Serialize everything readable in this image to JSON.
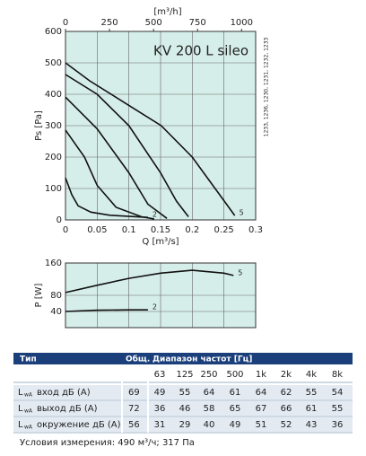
{
  "chart_data": [
    {
      "type": "line",
      "title": "KV 200 L sileo",
      "annotation": "1233, 1236, 1230, 1231, 1232, 1233",
      "xlabel": "Q [m³/s]",
      "ylabel": "Ps [Pa]",
      "x2label": "[m³/h]",
      "xlim": [
        0,
        0.3
      ],
      "xticks": [
        0,
        0.05,
        0.1,
        0.15,
        0.2,
        0.25,
        0.3
      ],
      "x2lim": [
        0,
        1080
      ],
      "x2ticks": [
        0,
        250,
        500,
        750,
        1000
      ],
      "ylim": [
        0,
        600
      ],
      "yticks": [
        0,
        100,
        200,
        300,
        400,
        500,
        600
      ],
      "grid": true,
      "background": "#d6eee9",
      "series": [
        {
          "name": "5",
          "color": "#111111",
          "x": [
            0,
            0.038,
            0.095,
            0.151,
            0.2,
            0.236,
            0.267
          ],
          "values": [
            500,
            443,
            371,
            300,
            200,
            100,
            14
          ]
        },
        {
          "color": "#111111",
          "x": [
            0,
            0.05,
            0.1,
            0.15,
            0.175,
            0.194
          ],
          "values": [
            463,
            400,
            300,
            150,
            60,
            10
          ]
        },
        {
          "color": "#111111",
          "x": [
            0,
            0.05,
            0.1,
            0.13,
            0.16
          ],
          "values": [
            391,
            290,
            150,
            50,
            5
          ]
        },
        {
          "color": "#111111",
          "x": [
            0,
            0.03,
            0.05,
            0.08,
            0.12,
            0.14
          ],
          "values": [
            286,
            200,
            110,
            40,
            10,
            3
          ]
        },
        {
          "name": "2",
          "color": "#111111",
          "x": [
            0,
            0.01,
            0.02,
            0.04,
            0.07,
            0.13
          ],
          "values": [
            134,
            80,
            45,
            25,
            15,
            8
          ]
        }
      ]
    },
    {
      "type": "line",
      "ylabel": "P [W]",
      "xlim": [
        0,
        0.3
      ],
      "xticks": [
        0,
        0.05,
        0.1,
        0.15,
        0.2,
        0.25,
        0.3
      ],
      "ylim": [
        0,
        160
      ],
      "yticks": [
        40,
        80,
        160
      ],
      "grid": true,
      "background": "#d6eee9",
      "series": [
        {
          "name": "5",
          "color": "#111111",
          "x": [
            0,
            0.05,
            0.1,
            0.15,
            0.2,
            0.25,
            0.265
          ],
          "values": [
            87,
            105,
            122,
            135,
            142,
            135,
            129
          ]
        },
        {
          "name": "2",
          "color": "#111111",
          "x": [
            0,
            0.05,
            0.1,
            0.13
          ],
          "values": [
            40,
            43,
            44,
            44
          ]
        }
      ]
    }
  ],
  "table": {
    "header": [
      "Тип",
      "Общ.",
      "Диапазон частот [Гц]"
    ],
    "bands": [
      "63",
      "125",
      "250",
      "500",
      "1k",
      "2k",
      "4k",
      "8k"
    ],
    "rows": [
      {
        "symbol": "L",
        "sub": "wA",
        "label": "вход дБ (A)",
        "total": "69",
        "values": [
          "49",
          "55",
          "64",
          "61",
          "64",
          "62",
          "55",
          "54"
        ]
      },
      {
        "symbol": "L",
        "sub": "wA",
        "label": "выход дБ (A)",
        "total": "72",
        "values": [
          "36",
          "46",
          "58",
          "65",
          "67",
          "66",
          "61",
          "55"
        ]
      },
      {
        "symbol": "L",
        "sub": "wA",
        "label": "окружение дБ (A)",
        "total": "56",
        "values": [
          "31",
          "29",
          "40",
          "49",
          "51",
          "52",
          "43",
          "36"
        ]
      }
    ]
  },
  "footnote": "Условия измерения: 490 м³/ч; 317 Па"
}
